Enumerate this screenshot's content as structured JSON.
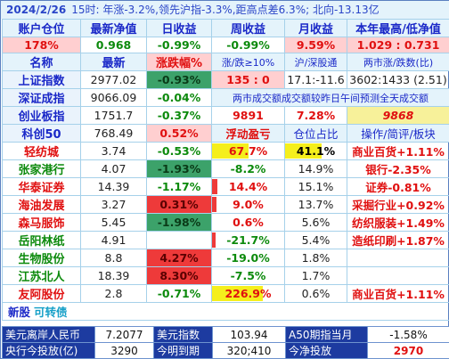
{
  "topbar": {
    "date": "2024/2/26",
    "summary": "15时: 年涨-3.2%,领先沪指-3.3%,距高点差6.3%; 北向-13.13亿"
  },
  "account_headers": [
    "账户仓位",
    "最新净值",
    "日收益",
    "周收益",
    "月收益",
    "本年最高/低净值"
  ],
  "account_values": [
    "178%",
    "0.968",
    "-0.99%",
    "-0.99%",
    "9.59%",
    "1.029 : 0.731"
  ],
  "index_headers": [
    "名称",
    "最新",
    "涨跌幅%",
    "涨/跌≥10%",
    "沪/深股通",
    "两市涨/跌数(比)"
  ],
  "indices": [
    {
      "name": "上证指数",
      "price": "2977.02",
      "chg": "-0.93%",
      "c1": "135 : 0",
      "c2": "17.1:-11.6",
      "c3": "3602:1433 (2.51)"
    },
    {
      "name": "深证成指",
      "price": "9066.09",
      "chg": "-0.04%",
      "note": "两市成交额成交额较昨日午间预测全天成交额"
    },
    {
      "name": "创业板指",
      "price": "1751.7",
      "chg": "-0.37%",
      "c1": "9891",
      "c2": "7.28%",
      "c3": "9868"
    },
    {
      "name": "科创50",
      "price": "768.49",
      "chg": "0.52%",
      "h1": "浮动盈亏",
      "h2": "仓位占比",
      "h3": "操作/简评/板块"
    }
  ],
  "stocks": [
    {
      "name": "轻纺城",
      "price": "3.74",
      "chg": "-0.53%",
      "pnl": "67.7%",
      "pnl_bar": 0.3,
      "pos": "41.1%",
      "pos_bar": 0.6,
      "note": "商业百货+1.11%"
    },
    {
      "name": "张家港行",
      "price": "4.07",
      "chg": "-1.93%",
      "pnl": "-8.2%",
      "pnl_bar": 0,
      "pos": "14.9%",
      "pos_bar": 0,
      "note": "银行-2.35%"
    },
    {
      "name": "华泰证券",
      "price": "14.39",
      "chg": "-1.17%",
      "pnl": "14.4%",
      "pnl_bar": 0.05,
      "pos": "15.1%",
      "pos_bar": 0,
      "note": "证券-0.81%"
    },
    {
      "name": "海油发展",
      "price": "3.27",
      "chg": "0.31%",
      "pnl": "9.0%",
      "pnl_bar": 0.04,
      "pos": "13.7%",
      "pos_bar": 0,
      "note": "采掘行业+0.92%"
    },
    {
      "name": "森马服饰",
      "price": "5.45",
      "chg": "-1.98%",
      "pnl": "0.6%",
      "pnl_bar": 0,
      "pos": "5.6%",
      "pos_bar": 0,
      "note": "纺织服装+1.49%"
    },
    {
      "name": "岳阳林纸",
      "price": "4.91",
      "chg": "",
      "pnl": "-21.7%",
      "pnl_bar": 0.04,
      "pos": "5.4%",
      "pos_bar": 0,
      "note": "造纸印刷+1.87%"
    },
    {
      "name": "生物股份",
      "price": "8.8",
      "chg": "4.27%",
      "pnl": "-19.0%",
      "pnl_bar": 0,
      "pos": "1.8%",
      "pos_bar": 0,
      "note": ""
    },
    {
      "name": "江苏北人",
      "price": "18.39",
      "chg": "8.30%",
      "pnl": "-7.5%",
      "pnl_bar": 0,
      "pos": "1.7%",
      "pos_bar": 0,
      "note": ""
    },
    {
      "name": "友阿股份",
      "price": "2.8",
      "chg": "-0.71%",
      "pnl": "226.9%",
      "pnl_bar": 0.6,
      "pos": "0.6%",
      "pos_bar": 0,
      "note": "商业百货+1.11%"
    }
  ],
  "newstock": {
    "label": "新股",
    "tag": "可转债"
  },
  "bottom": {
    "r1": {
      "l1": "美元离岸人民币",
      "v1": "7.2077",
      "l2": "美元指数",
      "v2": "103.94",
      "l3": "A50期指当月",
      "v3": "-1.58%"
    },
    "r2": {
      "l1": "央行今投放(亿)",
      "v1": "3290",
      "l2": "今明到期",
      "v2": "320;410",
      "l3": "今净投放",
      "v3": "2970"
    }
  },
  "colors": {
    "header_blue": "#1a28c8",
    "up_red": "#e01010",
    "down_green": "#0c8a0c"
  }
}
